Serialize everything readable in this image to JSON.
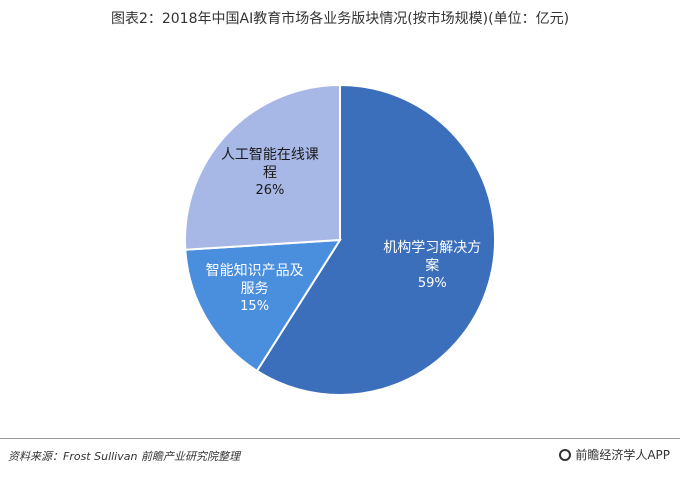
{
  "title": "图表2：2018年中国AI教育市场各业务版块情况(按市场规模)(单位：亿元)",
  "chart_data": {
    "type": "pie",
    "slices": [
      {
        "label_lines": [
          "机构学习解决方",
          "案"
        ],
        "percent_label": "59%",
        "value": 59,
        "color": "#3B6FBC",
        "text_color": "#ffffff"
      },
      {
        "label_lines": [
          "智能知识产品及",
          "服务"
        ],
        "percent_label": "15%",
        "value": 15,
        "color": "#4A8EDE",
        "text_color": "#ffffff"
      },
      {
        "label_lines": [
          "人工智能在线课",
          "程"
        ],
        "percent_label": "26%",
        "value": 26,
        "color": "#A7B8E6",
        "text_color": "#1a1a1a"
      }
    ]
  },
  "footer": {
    "source": "资料来源：Frost Sullivan 前瞻产业研究院整理",
    "brand": "前瞻经济学人APP"
  }
}
